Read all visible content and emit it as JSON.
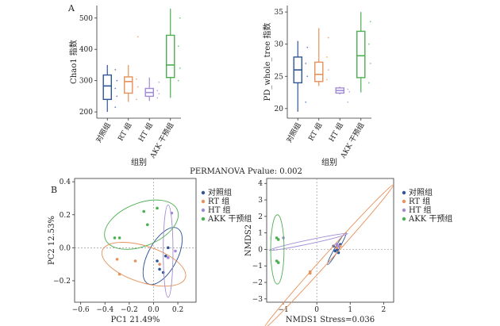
{
  "panel_labels": {
    "a": "A",
    "b": "B"
  },
  "colors": {
    "control": "#2f5597",
    "rt": "#e8915a",
    "ht": "#a28bd4",
    "akk": "#4caf50"
  },
  "chart_data": [
    {
      "type": "box",
      "ylabel": "Chao1 指数",
      "xlabel": "组别",
      "categories": [
        "对照组",
        "RT 组",
        "HT 组",
        "AKK 干预组"
      ],
      "ylim": [
        180,
        540
      ],
      "yticks": [
        200,
        300,
        400,
        500
      ],
      "boxes": [
        {
          "min": 200,
          "q1": 240,
          "median": 283,
          "q3": 318,
          "max": 350,
          "points": [
            215,
            250,
            275,
            300,
            335
          ]
        },
        {
          "min": 232,
          "q1": 260,
          "median": 297,
          "q3": 312,
          "max": 350,
          "points": [
            240,
            280,
            305,
            440
          ]
        },
        {
          "min": 235,
          "q1": 250,
          "median": 262,
          "q3": 275,
          "max": 310,
          "points": [
            245,
            258,
            268,
            295
          ]
        },
        {
          "min": 245,
          "q1": 310,
          "median": 350,
          "q3": 445,
          "max": 530,
          "points": [
            300,
            340,
            410,
            500
          ]
        }
      ]
    },
    {
      "type": "box",
      "ylabel": "PD_whole_tree 指数",
      "xlabel": "组别",
      "categories": [
        "对照组",
        "RT 组",
        "HT 组",
        "AKK 干预组"
      ],
      "ylim": [
        18.5,
        36
      ],
      "yticks": [
        20,
        25,
        30,
        35
      ],
      "boxes": [
        {
          "min": 19.5,
          "q1": 24.0,
          "median": 26.0,
          "q3": 28.0,
          "max": 30.5,
          "points": [
            21,
            25,
            27,
            29.5
          ]
        },
        {
          "min": 23.5,
          "q1": 24.2,
          "median": 25.3,
          "q3": 27.2,
          "max": 32.5,
          "points": [
            24.5,
            26,
            28,
            31
          ]
        },
        {
          "min": 22.2,
          "q1": 22.4,
          "median": 22.8,
          "q3": 23.2,
          "max": 23.4,
          "points": [
            21,
            22.6,
            23
          ]
        },
        {
          "min": 22.5,
          "q1": 24.8,
          "median": 28.2,
          "q3": 32.0,
          "max": 35.0,
          "points": [
            24,
            27,
            30,
            33.5
          ]
        }
      ]
    },
    {
      "type": "scatter",
      "title": "PERMANOVA Pvalue: 0.002",
      "xlabel": "PC1 21.49%",
      "ylabel": "PC2 12.53%",
      "xlim": [
        -0.65,
        0.35
      ],
      "ylim": [
        -0.33,
        0.42
      ],
      "xticks": [
        -0.6,
        -0.4,
        -0.2,
        0.0,
        0.2
      ],
      "xtick_labels": [
        "−0.6",
        "−0.4",
        "−0.2",
        "0.0",
        "0.2"
      ],
      "yticks": [
        -0.2,
        0.0,
        0.2,
        0.4
      ],
      "ytick_labels": [
        "−0.2",
        "0.0",
        "0.2",
        "0.4"
      ],
      "series": [
        {
          "name": "对照组",
          "x": [
            0.03,
            0.08,
            0.1,
            0.12,
            0.05
          ],
          "y": [
            -0.08,
            -0.15,
            -0.05,
            0.0,
            -0.13
          ],
          "ellipse": {
            "cx": 0.075,
            "cy": -0.05,
            "rx": 0.12,
            "ry": 0.19,
            "angle": 28
          }
        },
        {
          "name": "RT 组",
          "x": [
            -0.28,
            -0.15,
            0.05,
            -0.3
          ],
          "y": [
            -0.16,
            -0.08,
            -0.1,
            -0.07
          ],
          "ellipse": {
            "cx": -0.08,
            "cy": -0.1,
            "rx": 0.36,
            "ry": 0.11,
            "angle": 18
          }
        },
        {
          "name": "HT 组",
          "x": [
            0.15,
            0.12,
            0.18
          ],
          "y": [
            0.21,
            -0.06,
            -0.02
          ],
          "ellipse": {
            "cx": 0.12,
            "cy": -0.02,
            "rx": 0.04,
            "ry": 0.28,
            "angle": 0
          }
        },
        {
          "name": "AKK 干预组",
          "x": [
            -0.32,
            -0.28,
            -0.05,
            0.03,
            -0.08
          ],
          "y": [
            0.06,
            0.06,
            0.14,
            0.24,
            0.22
          ],
          "ellipse": {
            "cx": -0.1,
            "cy": 0.14,
            "rx": 0.32,
            "ry": 0.13,
            "angle": -22
          }
        }
      ],
      "legend": "right"
    },
    {
      "type": "scatter",
      "xlabel": "NMDS1 Stress=0.036",
      "ylabel": "NMDS2",
      "xlim": [
        -1.5,
        2.3
      ],
      "ylim": [
        -3.2,
        4.3
      ],
      "xticks": [
        -1,
        0,
        1,
        2
      ],
      "xtick_labels": [
        "−1",
        "0",
        "1",
        "2"
      ],
      "yticks": [
        -3,
        -2,
        -1,
        0,
        1,
        2,
        3,
        4
      ],
      "ytick_labels": [
        "−3",
        "−2",
        "−1",
        "0",
        "1",
        "2",
        "3",
        "4"
      ],
      "series": [
        {
          "name": "对照组",
          "x": [
            0.5,
            0.55,
            0.6,
            0.7,
            0.65
          ],
          "y": [
            0.2,
            -0.1,
            0.0,
            0.3,
            -0.2
          ],
          "ellipse": {
            "cx": 0.6,
            "cy": 0.05,
            "rx": 0.55,
            "ry": 0.12,
            "angle": -60
          }
        },
        {
          "name": "RT 组",
          "x": [
            -0.2,
            -0.2,
            0.6,
            0.7
          ],
          "y": [
            -1.35,
            -1.45,
            0.1,
            0.2
          ],
          "ellipse": {
            "cx": 0.35,
            "cy": -0.45,
            "rx": 2.9,
            "ry": 0.22,
            "angle": -48
          }
        },
        {
          "name": "HT 组",
          "x": [
            -1.0,
            0.6,
            0.65
          ],
          "y": [
            0.7,
            0.3,
            0.2
          ],
          "ellipse": {
            "cx": -0.25,
            "cy": 0.45,
            "rx": 1.2,
            "ry": 0.12,
            "angle": -12
          }
        },
        {
          "name": "AKK 干预组",
          "x": [
            -1.2,
            -1.15,
            -1.2,
            -1.15
          ],
          "y": [
            0.7,
            0.6,
            -0.7,
            -0.8
          ],
          "ellipse": {
            "cx": -1.18,
            "cy": 0.0,
            "rx": 0.2,
            "ry": 2.1,
            "angle": 0
          }
        }
      ],
      "legend": "right"
    }
  ]
}
